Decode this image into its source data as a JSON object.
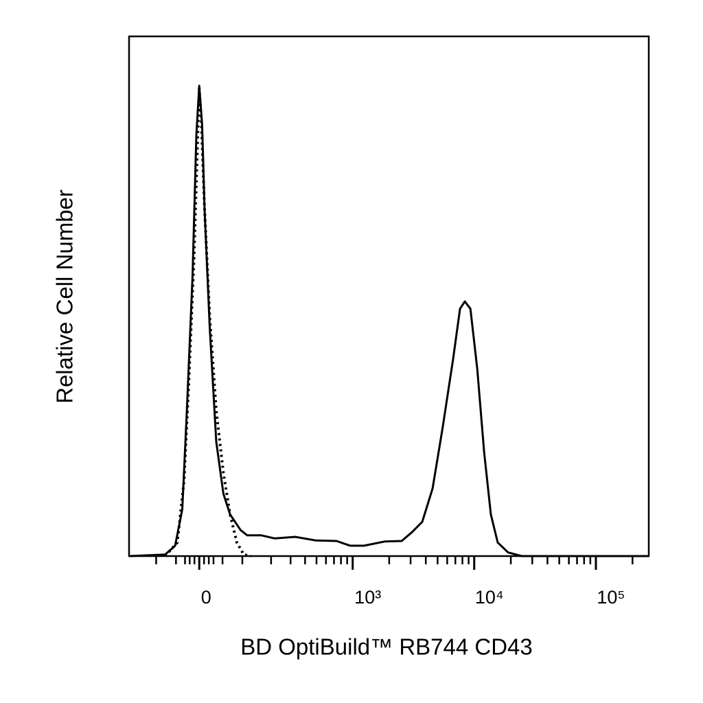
{
  "chart_data": {
    "type": "histogram-overlay",
    "xlabel": "BD OptiBuild™ RB744 CD43",
    "ylabel": "Relative Cell Number",
    "xscale": "biexponential",
    "xlim": [
      -193,
      272000
    ],
    "ylim": [
      0,
      100
    ],
    "xticks": [
      0,
      {
        "value": 1000,
        "label": "10³"
      },
      {
        "value": 10000,
        "label": "10⁴"
      },
      {
        "value": 100000,
        "label": "10⁵"
      }
    ],
    "xminorticks": [
      -100,
      -50,
      -30,
      -20,
      -10,
      10,
      20,
      30,
      50,
      100,
      200,
      300,
      400,
      500,
      600,
      700,
      800,
      900,
      2000,
      3000,
      4000,
      5000,
      6000,
      7000,
      8000,
      9000,
      20000,
      30000,
      40000,
      50000,
      60000,
      70000,
      80000,
      90000,
      200000
    ],
    "grid": false,
    "series": [
      {
        "color": "#000000",
        "style": "solid",
        "x": [
          -190,
          -76,
          -52,
          -36,
          -26,
          -14,
          -6,
          0,
          6,
          11,
          22,
          36,
          52,
          68,
          95,
          114,
          160,
          217,
          329,
          495,
          734,
          955,
          1240,
          1830,
          2535,
          3080,
          3745,
          4550,
          5525,
          6720,
          7650,
          8380,
          9300,
          10600,
          12060,
          13700,
          15600,
          19000,
          24600,
          272000
        ],
        "values": [
          0,
          0.3,
          2,
          9,
          28,
          54,
          81,
          90.5,
          83,
          67,
          44,
          22,
          12,
          8,
          5,
          4,
          4,
          3.4,
          3.7,
          3,
          2.9,
          2,
          2,
          2.8,
          2.9,
          4.6,
          6.6,
          13,
          25,
          38,
          47.6,
          49,
          47.6,
          36,
          20,
          8,
          2.6,
          0.7,
          0,
          0
        ]
      },
      {
        "color": "#000000",
        "style": "dotted",
        "x": [
          -76,
          -47,
          -32,
          -22,
          -11,
          -4,
          0,
          4,
          11,
          22,
          36,
          52,
          68,
          85,
          104,
          125
        ],
        "values": [
          0,
          2.6,
          14.5,
          33,
          57,
          78,
          90,
          84.5,
          67,
          46,
          28,
          16,
          8,
          2.6,
          0.3,
          0
        ]
      }
    ]
  }
}
